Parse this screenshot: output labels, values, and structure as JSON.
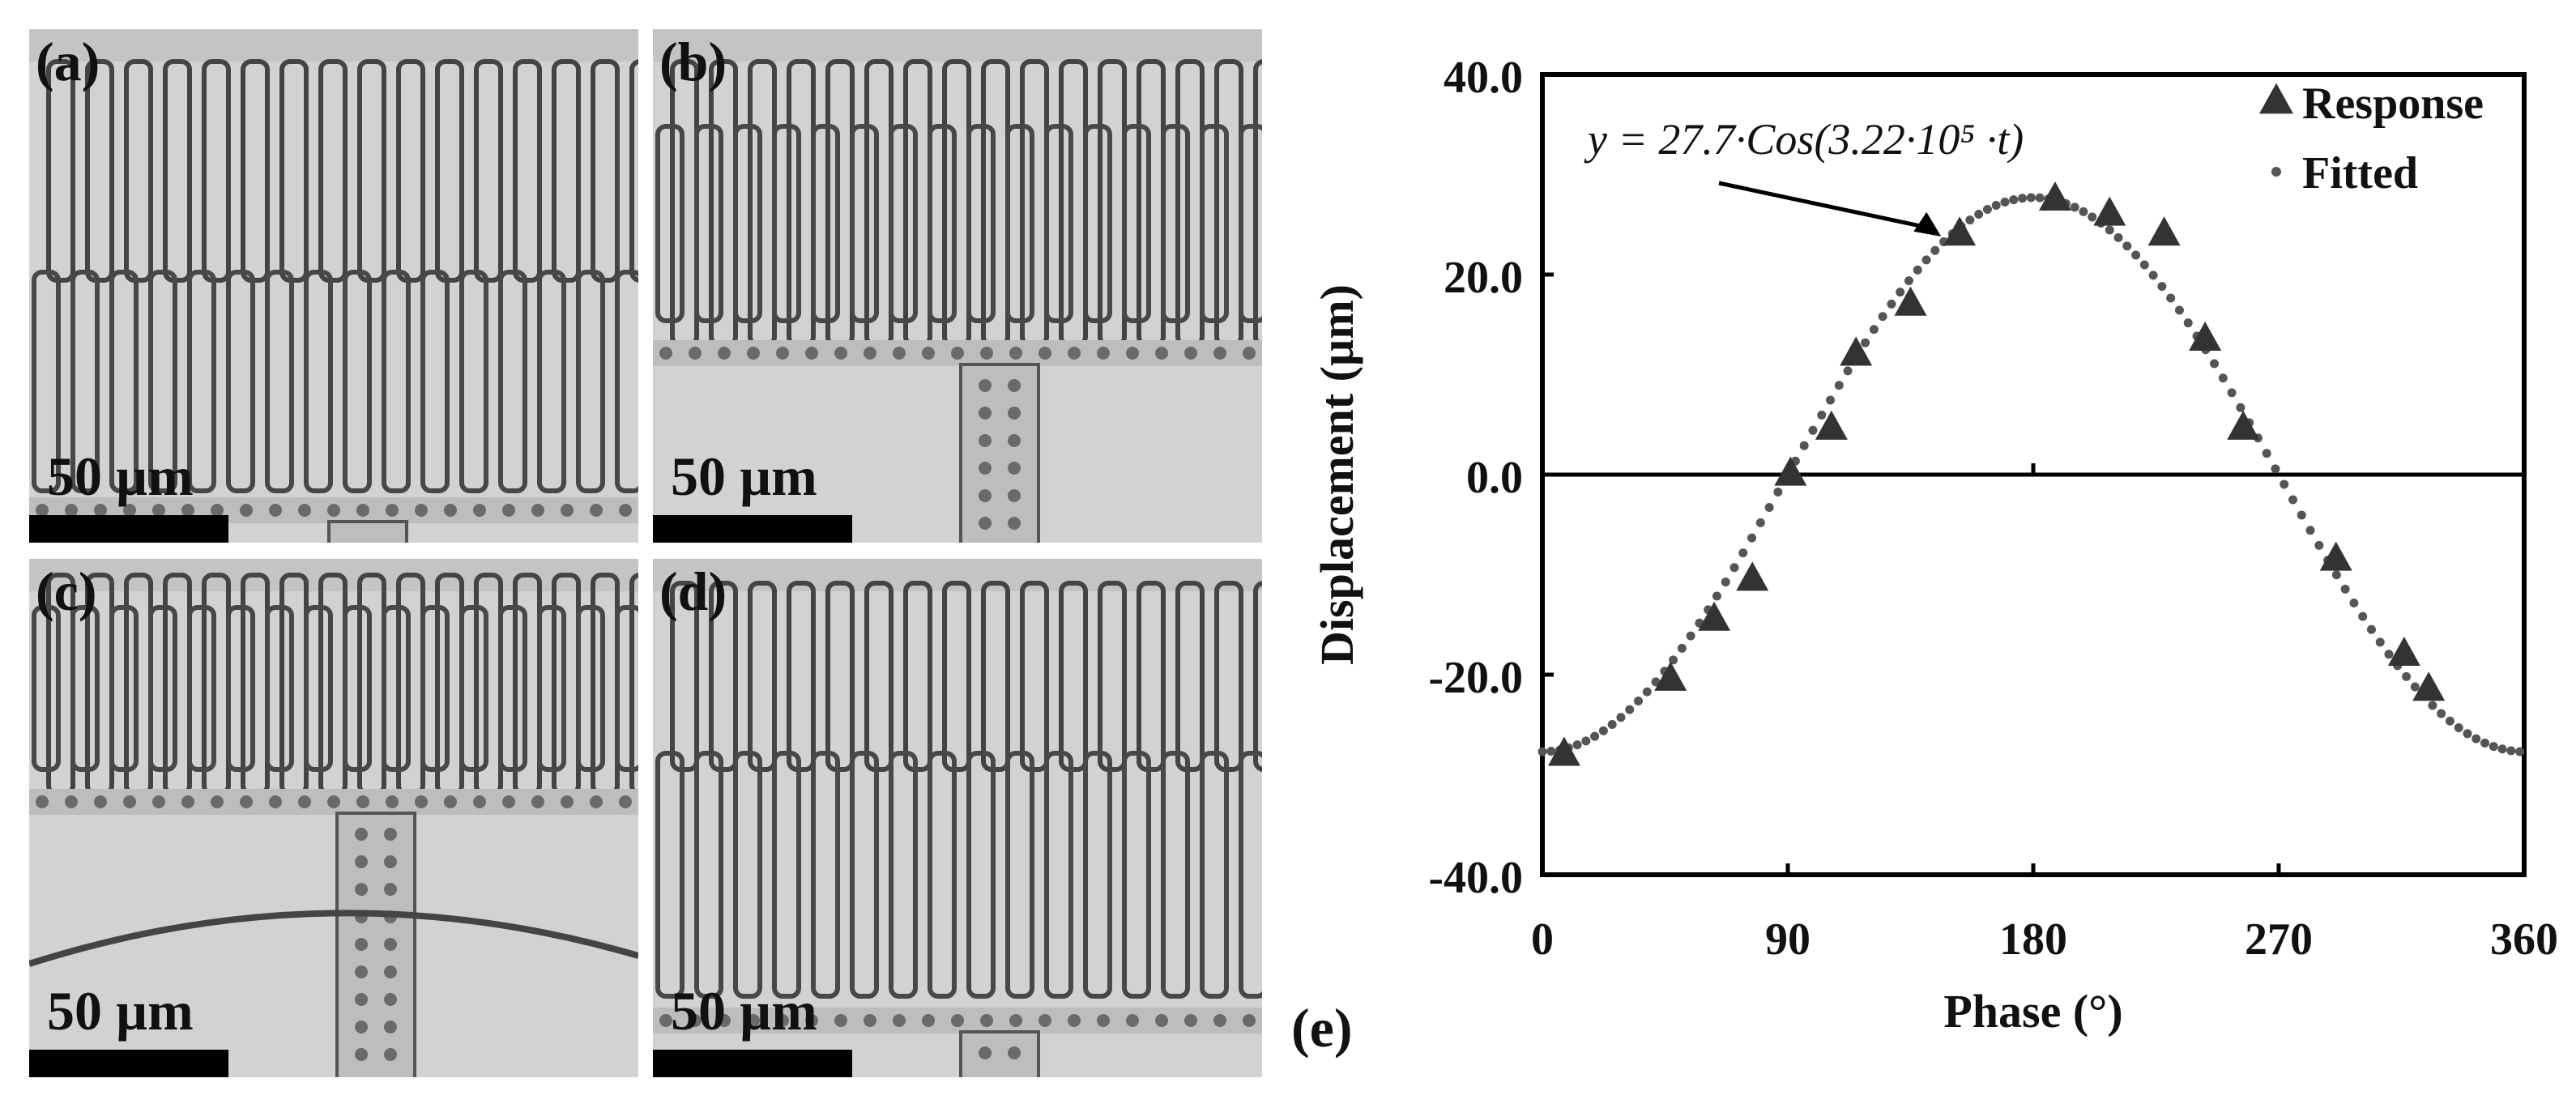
{
  "micrographs": [
    {
      "label": "(a)",
      "scale_label": "50 µm"
    },
    {
      "label": "(b)",
      "scale_label": "50 µm"
    },
    {
      "label": "(c)",
      "scale_label": "50 µm"
    },
    {
      "label": "(d)",
      "scale_label": "50 µm"
    }
  ],
  "chart_panel_label": "(e)",
  "chart_data": {
    "type": "scatter",
    "xlabel": "Phase (°)",
    "ylabel": "Displacement (µm)",
    "xlim": [
      0,
      360
    ],
    "ylim": [
      -40,
      40
    ],
    "x_ticks": [
      "0",
      "90",
      "180",
      "270",
      "360"
    ],
    "y_ticks": [
      "40.0",
      "20.0",
      "0.0",
      "-20.0",
      "-40.0"
    ],
    "grid": false,
    "legend_position": "top-right",
    "annotation": {
      "text": "y = 27.7·Cos(3.22·10⁵ ·t)",
      "points_to_x": 148
    },
    "series": [
      {
        "name": "Response",
        "marker": "triangle",
        "color": "#333333",
        "points": [
          [
            8,
            -28
          ],
          [
            47,
            -20.5
          ],
          [
            63,
            -14.5
          ],
          [
            77,
            -10.5
          ],
          [
            91,
            0
          ],
          [
            106,
            4.6
          ],
          [
            115,
            12
          ],
          [
            135,
            17
          ],
          [
            153,
            24
          ],
          [
            188,
            27.5
          ],
          [
            208,
            26
          ],
          [
            228,
            24
          ],
          [
            243,
            13.5
          ],
          [
            257,
            4.6
          ],
          [
            291,
            -8.5
          ],
          [
            316,
            -18
          ],
          [
            325,
            -21.5
          ]
        ]
      },
      {
        "name": "Fitted",
        "marker": "dotted-line",
        "color": "#555555",
        "function": "-27.7*cos(phase)"
      }
    ]
  }
}
